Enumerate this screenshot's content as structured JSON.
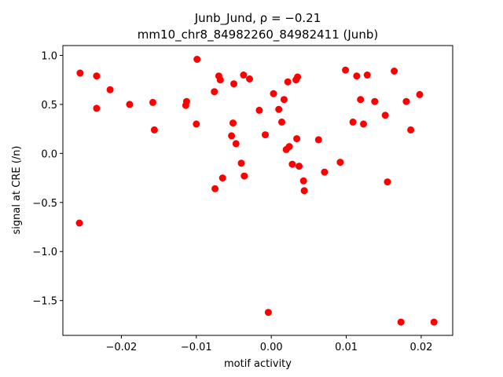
{
  "chart_data": {
    "type": "scatter",
    "title_line1": "Junb_Jund, ρ = −0.21",
    "title_line2": "mm10_chr8_84982260_84982411 (Junb)",
    "xlabel": "motif activity",
    "ylabel": "signal at CRE (/n)",
    "xlim": [
      -0.0278,
      0.0242
    ],
    "ylim": [
      -1.855,
      1.1
    ],
    "xticks": [
      -0.02,
      -0.01,
      0.0,
      0.01,
      0.02
    ],
    "xtick_labels": [
      "−0.02",
      "−0.01",
      "0.00",
      "0.01",
      "0.02"
    ],
    "yticks": [
      -1.5,
      -1.0,
      -0.5,
      0.0,
      0.5,
      1.0
    ],
    "ytick_labels": [
      "−1.5",
      "−1.0",
      "−0.5",
      "0.0",
      "0.5",
      "1.0"
    ],
    "marker_color": "#ff0000",
    "grid": false,
    "points": [
      {
        "x": -0.0255,
        "y": 0.82
      },
      {
        "x": -0.0233,
        "y": 0.79
      },
      {
        "x": -0.0233,
        "y": 0.46
      },
      {
        "x": -0.0215,
        "y": 0.65
      },
      {
        "x": -0.0189,
        "y": 0.5
      },
      {
        "x": -0.0158,
        "y": 0.52
      },
      {
        "x": -0.0156,
        "y": 0.24
      },
      {
        "x": -0.0113,
        "y": 0.53
      },
      {
        "x": -0.0114,
        "y": 0.49
      },
      {
        "x": -0.0099,
        "y": 0.96
      },
      {
        "x": -0.01,
        "y": 0.3
      },
      {
        "x": -0.0076,
        "y": 0.63
      },
      {
        "x": -0.007,
        "y": 0.79
      },
      {
        "x": -0.0068,
        "y": 0.75
      },
      {
        "x": -0.0075,
        "y": -0.36
      },
      {
        "x": -0.0065,
        "y": -0.25
      },
      {
        "x": -0.0053,
        "y": 0.18
      },
      {
        "x": -0.0051,
        "y": 0.31
      },
      {
        "x": -0.005,
        "y": 0.71
      },
      {
        "x": -0.0047,
        "y": 0.1
      },
      {
        "x": -0.004,
        "y": -0.1
      },
      {
        "x": -0.0037,
        "y": 0.8
      },
      {
        "x": -0.0036,
        "y": -0.23
      },
      {
        "x": -0.0029,
        "y": 0.76
      },
      {
        "x": -0.0016,
        "y": 0.44
      },
      {
        "x": -0.0008,
        "y": 0.19
      },
      {
        "x": -0.0004,
        "y": -1.62
      },
      {
        "x": 0.0003,
        "y": 0.61
      },
      {
        "x": 0.001,
        "y": 0.45
      },
      {
        "x": 0.0014,
        "y": 0.32
      },
      {
        "x": 0.0017,
        "y": 0.55
      },
      {
        "x": 0.002,
        "y": 0.04
      },
      {
        "x": 0.0022,
        "y": 0.73
      },
      {
        "x": 0.0024,
        "y": 0.07
      },
      {
        "x": 0.0028,
        "y": -0.11
      },
      {
        "x": 0.0033,
        "y": 0.75
      },
      {
        "x": 0.0034,
        "y": 0.15
      },
      {
        "x": 0.0035,
        "y": 0.78
      },
      {
        "x": 0.0037,
        "y": -0.13
      },
      {
        "x": 0.0043,
        "y": -0.28
      },
      {
        "x": 0.0044,
        "y": -0.38
      },
      {
        "x": 0.0063,
        "y": 0.14
      },
      {
        "x": 0.0071,
        "y": -0.19
      },
      {
        "x": 0.0092,
        "y": -0.09
      },
      {
        "x": 0.0099,
        "y": 0.85
      },
      {
        "x": 0.0109,
        "y": 0.32
      },
      {
        "x": 0.0114,
        "y": 0.79
      },
      {
        "x": 0.0119,
        "y": 0.55
      },
      {
        "x": 0.0123,
        "y": 0.3
      },
      {
        "x": 0.0128,
        "y": 0.8
      },
      {
        "x": 0.0138,
        "y": 0.53
      },
      {
        "x": 0.0152,
        "y": 0.39
      },
      {
        "x": 0.0155,
        "y": -0.29
      },
      {
        "x": 0.0164,
        "y": 0.84
      },
      {
        "x": 0.0173,
        "y": -1.72
      },
      {
        "x": 0.018,
        "y": 0.53
      },
      {
        "x": 0.0186,
        "y": 0.24
      },
      {
        "x": 0.0198,
        "y": 0.6
      },
      {
        "x": 0.0217,
        "y": -1.72
      },
      {
        "x": -0.0256,
        "y": -0.71
      }
    ]
  }
}
